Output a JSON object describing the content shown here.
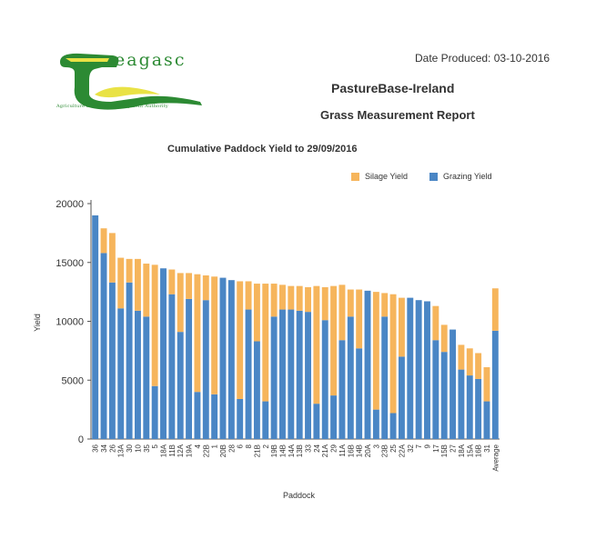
{
  "header": {
    "brand": "eagasc",
    "brand_tagline": "Agriculture and Food Development Authority",
    "date_produced": "Date Produced: 03-10-2016",
    "report_title": "PastureBase-Ireland",
    "report_subtitle": "Grass Measurement Report"
  },
  "colors": {
    "grazing": "#4a86c5",
    "silage": "#f6b55c",
    "brand_green": "#2c8a33",
    "brand_yellow": "#e9e245"
  },
  "chart_data": {
    "type": "bar",
    "stacked": true,
    "title": "Cumulative Paddock Yield to 29/09/2016",
    "xlabel": "Paddock",
    "ylabel": "Yield",
    "ylim": [
      0,
      20000
    ],
    "yticks": [
      0,
      5000,
      10000,
      15000,
      20000
    ],
    "grid": false,
    "legend": "top-right",
    "categories": [
      "36",
      "34",
      "26",
      "13A",
      "30",
      "10",
      "35",
      "5",
      "18A",
      "11B",
      "12A",
      "19A",
      "4",
      "22B",
      "1",
      "20B",
      "28",
      "6",
      "8",
      "21B",
      "2",
      "19B",
      "14B",
      "14A",
      "13B",
      "33",
      "24",
      "21A",
      "29",
      "11A",
      "16B",
      "14B",
      "20A",
      "3",
      "23B",
      "25",
      "22A",
      "32",
      "7",
      "9",
      "17",
      "15B",
      "27",
      "18A",
      "15A",
      "16B",
      "31",
      "Average"
    ],
    "series": [
      {
        "name": "Silage Yield",
        "values": [
          0,
          2100,
          4200,
          4300,
          2000,
          4400,
          4500,
          10300,
          0,
          2100,
          5000,
          2200,
          10000,
          2100,
          10000,
          0,
          0,
          10000,
          2400,
          4900,
          10000,
          2800,
          2100,
          2000,
          2100,
          2100,
          10000,
          2800,
          9300,
          4700,
          2300,
          5000,
          0,
          10000,
          2000,
          10100,
          5000,
          0,
          0,
          0,
          2900,
          2300,
          0,
          2100,
          2300,
          2200,
          2900,
          3600
        ]
      },
      {
        "name": "Grazing Yield",
        "values": [
          19000,
          15800,
          13300,
          11100,
          13300,
          10900,
          10400,
          4500,
          14500,
          12300,
          9100,
          11900,
          4000,
          11800,
          3800,
          13700,
          13500,
          3400,
          11000,
          8300,
          3200,
          10400,
          11000,
          11000,
          10900,
          10800,
          3000,
          10100,
          3700,
          8400,
          10400,
          7700,
          12600,
          2500,
          10400,
          2200,
          7000,
          12000,
          11800,
          11700,
          8400,
          7400,
          9300,
          5900,
          5400,
          5100,
          3200,
          9200
        ]
      }
    ]
  }
}
